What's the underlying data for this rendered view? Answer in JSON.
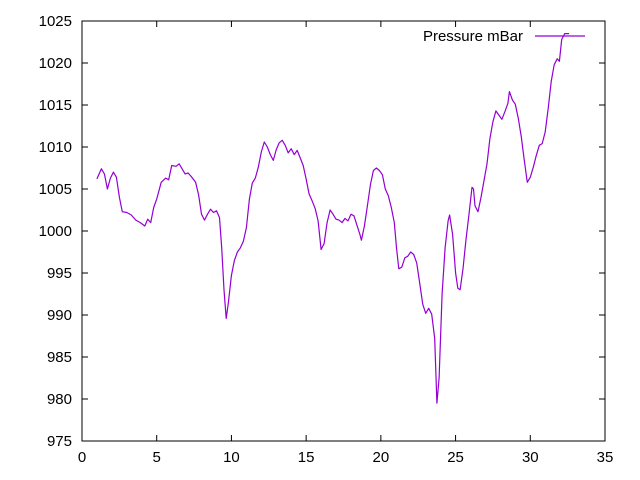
{
  "chart_data": {
    "type": "line",
    "title": "",
    "xlabel": "",
    "ylabel": "",
    "xlim": [
      0,
      35
    ],
    "ylim": [
      975,
      1025
    ],
    "xticks": [
      0,
      5,
      10,
      15,
      20,
      25,
      30,
      35
    ],
    "yticks": [
      975,
      980,
      985,
      990,
      995,
      1000,
      1005,
      1010,
      1015,
      1020,
      1025
    ],
    "grid": false,
    "legend": {
      "placement": "top-right"
    },
    "series": [
      {
        "name": "Pressure mBar",
        "color": "#9400d3",
        "points": [
          [
            1.0,
            1006.2
          ],
          [
            1.3,
            1007.4
          ],
          [
            1.5,
            1006.8
          ],
          [
            1.7,
            1005.0
          ],
          [
            1.9,
            1006.3
          ],
          [
            2.1,
            1007.0
          ],
          [
            2.3,
            1006.4
          ],
          [
            2.5,
            1004.0
          ],
          [
            2.7,
            1002.3
          ],
          [
            3.0,
            1002.2
          ],
          [
            3.3,
            1001.9
          ],
          [
            3.6,
            1001.3
          ],
          [
            3.9,
            1001.0
          ],
          [
            4.2,
            1000.6
          ],
          [
            4.4,
            1001.4
          ],
          [
            4.6,
            1001.0
          ],
          [
            4.8,
            1002.8
          ],
          [
            5.0,
            1003.8
          ],
          [
            5.3,
            1005.8
          ],
          [
            5.6,
            1006.3
          ],
          [
            5.8,
            1006.1
          ],
          [
            6.0,
            1007.8
          ],
          [
            6.3,
            1007.7
          ],
          [
            6.5,
            1008.0
          ],
          [
            6.7,
            1007.4
          ],
          [
            6.9,
            1006.8
          ],
          [
            7.1,
            1006.9
          ],
          [
            7.3,
            1006.5
          ],
          [
            7.6,
            1005.8
          ],
          [
            7.8,
            1004.3
          ],
          [
            8.0,
            1002.0
          ],
          [
            8.2,
            1001.3
          ],
          [
            8.4,
            1002.0
          ],
          [
            8.6,
            1002.6
          ],
          [
            8.8,
            1002.2
          ],
          [
            9.0,
            1002.4
          ],
          [
            9.2,
            1001.6
          ],
          [
            9.35,
            998.0
          ],
          [
            9.5,
            993.0
          ],
          [
            9.65,
            989.6
          ],
          [
            9.8,
            991.5
          ],
          [
            10.0,
            994.7
          ],
          [
            10.2,
            996.5
          ],
          [
            10.4,
            997.5
          ],
          [
            10.6,
            998.0
          ],
          [
            10.8,
            998.8
          ],
          [
            11.0,
            1000.4
          ],
          [
            11.2,
            1003.8
          ],
          [
            11.4,
            1005.7
          ],
          [
            11.6,
            1006.3
          ],
          [
            11.8,
            1007.6
          ],
          [
            12.0,
            1009.4
          ],
          [
            12.2,
            1010.6
          ],
          [
            12.4,
            1010.0
          ],
          [
            12.6,
            1009.1
          ],
          [
            12.8,
            1008.4
          ],
          [
            13.0,
            1009.7
          ],
          [
            13.2,
            1010.5
          ],
          [
            13.4,
            1010.8
          ],
          [
            13.6,
            1010.2
          ],
          [
            13.8,
            1009.3
          ],
          [
            14.0,
            1009.8
          ],
          [
            14.2,
            1009.1
          ],
          [
            14.4,
            1009.6
          ],
          [
            14.6,
            1008.7
          ],
          [
            14.8,
            1007.8
          ],
          [
            15.0,
            1006.2
          ],
          [
            15.2,
            1004.4
          ],
          [
            15.4,
            1003.6
          ],
          [
            15.6,
            1002.7
          ],
          [
            15.8,
            1001.2
          ],
          [
            16.0,
            997.8
          ],
          [
            16.2,
            998.5
          ],
          [
            16.4,
            1001.0
          ],
          [
            16.6,
            1002.5
          ],
          [
            16.8,
            1002.0
          ],
          [
            17.0,
            1001.4
          ],
          [
            17.2,
            1001.3
          ],
          [
            17.4,
            1001.0
          ],
          [
            17.6,
            1001.5
          ],
          [
            17.8,
            1001.2
          ],
          [
            18.0,
            1002.0
          ],
          [
            18.2,
            1001.8
          ],
          [
            18.4,
            1000.7
          ],
          [
            18.6,
            999.6
          ],
          [
            18.7,
            998.9
          ],
          [
            18.9,
            1000.6
          ],
          [
            19.1,
            1003.0
          ],
          [
            19.3,
            1005.5
          ],
          [
            19.5,
            1007.2
          ],
          [
            19.7,
            1007.5
          ],
          [
            19.9,
            1007.2
          ],
          [
            20.1,
            1006.7
          ],
          [
            20.3,
            1005.0
          ],
          [
            20.5,
            1004.2
          ],
          [
            20.7,
            1002.8
          ],
          [
            20.9,
            1001.0
          ],
          [
            21.05,
            998.0
          ],
          [
            21.2,
            995.5
          ],
          [
            21.4,
            995.7
          ],
          [
            21.6,
            996.8
          ],
          [
            21.8,
            997.0
          ],
          [
            22.0,
            997.5
          ],
          [
            22.2,
            997.2
          ],
          [
            22.4,
            996.2
          ],
          [
            22.6,
            993.8
          ],
          [
            22.8,
            991.3
          ],
          [
            23.0,
            990.2
          ],
          [
            23.2,
            990.8
          ],
          [
            23.4,
            990.1
          ],
          [
            23.6,
            987.2
          ],
          [
            23.75,
            979.5
          ],
          [
            23.9,
            982.5
          ],
          [
            24.1,
            992.5
          ],
          [
            24.3,
            998.0
          ],
          [
            24.5,
            1001.2
          ],
          [
            24.6,
            1001.9
          ],
          [
            24.8,
            999.6
          ],
          [
            25.0,
            995.0
          ],
          [
            25.15,
            993.2
          ],
          [
            25.3,
            993.0
          ],
          [
            25.5,
            995.5
          ],
          [
            25.7,
            999.0
          ],
          [
            25.9,
            1002.0
          ],
          [
            26.1,
            1005.2
          ],
          [
            26.2,
            1005.0
          ],
          [
            26.3,
            1003.0
          ],
          [
            26.5,
            1002.3
          ],
          [
            26.7,
            1004.0
          ],
          [
            26.9,
            1006.0
          ],
          [
            27.1,
            1008.0
          ],
          [
            27.3,
            1011.0
          ],
          [
            27.5,
            1013.0
          ],
          [
            27.7,
            1014.3
          ],
          [
            27.9,
            1013.8
          ],
          [
            28.1,
            1013.3
          ],
          [
            28.3,
            1014.2
          ],
          [
            28.5,
            1015.2
          ],
          [
            28.6,
            1016.6
          ],
          [
            28.8,
            1015.6
          ],
          [
            29.0,
            1015.1
          ],
          [
            29.2,
            1013.4
          ],
          [
            29.4,
            1011.2
          ],
          [
            29.6,
            1008.4
          ],
          [
            29.8,
            1005.8
          ],
          [
            30.0,
            1006.4
          ],
          [
            30.2,
            1007.6
          ],
          [
            30.4,
            1009.0
          ],
          [
            30.6,
            1010.2
          ],
          [
            30.8,
            1010.4
          ],
          [
            31.0,
            1011.8
          ],
          [
            31.2,
            1014.6
          ],
          [
            31.4,
            1017.8
          ],
          [
            31.6,
            1019.8
          ],
          [
            31.8,
            1020.5
          ],
          [
            31.95,
            1020.2
          ],
          [
            32.1,
            1022.8
          ],
          [
            32.3,
            1023.5
          ],
          [
            32.6,
            1023.5
          ]
        ]
      }
    ]
  }
}
